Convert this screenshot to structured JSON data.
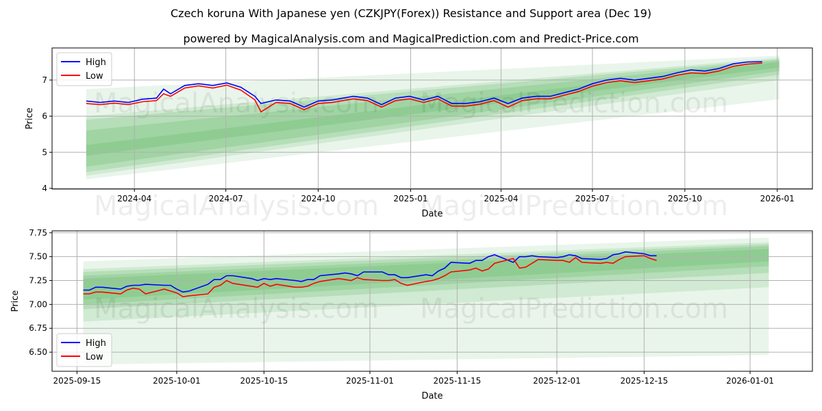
{
  "title": "Czech koruna With Japanese yen (CZKJPY(Forex)) Resistance and Support area (Dec 19)",
  "subtitle": "powered by MagicalAnalysis.com and MagicalPrediction.com and Predict-Price.com",
  "watermarks": [
    "MagicalAnalysis.com",
    "MagicalPrediction.com"
  ],
  "colors": {
    "high": "#0000ff",
    "low": "#ff0000",
    "band": "#4caf50"
  },
  "chart_data": [
    {
      "type": "line",
      "xlabel": "Date",
      "ylabel": "Price",
      "ylim": [
        3.98,
        7.89
      ],
      "xlim": [
        "2024-01-10",
        "2026-02-05"
      ],
      "yticks": [
        4,
        5,
        6,
        7
      ],
      "xticks": [
        "2024-04-01",
        "2024-07-01",
        "2024-10-01",
        "2025-01-01",
        "2025-04-01",
        "2025-07-01",
        "2025-10-01",
        "2026-01-01"
      ],
      "xtick_labels": [
        "2024-04",
        "2024-07",
        "2024-10",
        "2025-01",
        "2025-04",
        "2025-07",
        "2025-10",
        "2026-01"
      ],
      "legend": {
        "position": "top-left",
        "entries": [
          "High",
          "Low"
        ]
      },
      "grid": true,
      "bands": {
        "start": "2024-02-13",
        "end": "2026-01-03",
        "items": [
          {
            "start": [
              4.25,
              6.75
            ],
            "end": [
              6.47,
              7.68
            ],
            "alpha": 0.12
          },
          {
            "start": [
              4.35,
              6.0
            ],
            "end": [
              7.0,
              7.62
            ],
            "alpha": 0.15
          },
          {
            "start": [
              4.45,
              5.9
            ],
            "end": [
              7.15,
              7.58
            ],
            "alpha": 0.2
          },
          {
            "start": [
              4.6,
              5.6
            ],
            "end": [
              7.25,
              7.55
            ],
            "alpha": 0.2
          },
          {
            "start": [
              4.9,
              5.2
            ],
            "end": [
              7.35,
              7.5
            ],
            "alpha": 0.2
          }
        ]
      },
      "x": [
        "2024-02-13",
        "2024-02-27",
        "2024-03-12",
        "2024-03-26",
        "2024-04-09",
        "2024-04-23",
        "2024-04-30",
        "2024-05-07",
        "2024-05-21",
        "2024-06-04",
        "2024-06-18",
        "2024-07-02",
        "2024-07-16",
        "2024-07-30",
        "2024-08-05",
        "2024-08-20",
        "2024-09-03",
        "2024-09-17",
        "2024-10-01",
        "2024-10-15",
        "2024-11-05",
        "2024-11-19",
        "2024-12-03",
        "2024-12-17",
        "2024-12-31",
        "2025-01-14",
        "2025-01-28",
        "2025-02-11",
        "2025-02-25",
        "2025-03-11",
        "2025-03-25",
        "2025-04-08",
        "2025-04-22",
        "2025-05-06",
        "2025-05-20",
        "2025-06-03",
        "2025-06-17",
        "2025-07-01",
        "2025-07-15",
        "2025-07-29",
        "2025-08-12",
        "2025-08-26",
        "2025-09-09",
        "2025-09-23",
        "2025-10-07",
        "2025-10-21",
        "2025-11-04",
        "2025-11-18",
        "2025-12-02",
        "2025-12-17"
      ],
      "series": [
        {
          "name": "High",
          "values": [
            6.42,
            6.38,
            6.42,
            6.38,
            6.47,
            6.5,
            6.75,
            6.62,
            6.85,
            6.9,
            6.85,
            6.92,
            6.8,
            6.55,
            6.35,
            6.45,
            6.42,
            6.25,
            6.42,
            6.45,
            6.55,
            6.5,
            6.32,
            6.5,
            6.55,
            6.45,
            6.55,
            6.35,
            6.35,
            6.4,
            6.5,
            6.35,
            6.5,
            6.55,
            6.55,
            6.65,
            6.75,
            6.9,
            7.0,
            7.05,
            7.0,
            7.05,
            7.1,
            7.2,
            7.28,
            7.25,
            7.32,
            7.45,
            7.5,
            7.51
          ]
        },
        {
          "name": "Low",
          "values": [
            6.35,
            6.32,
            6.36,
            6.32,
            6.4,
            6.43,
            6.62,
            6.55,
            6.78,
            6.84,
            6.78,
            6.86,
            6.72,
            6.45,
            6.12,
            6.38,
            6.35,
            6.18,
            6.35,
            6.38,
            6.48,
            6.43,
            6.25,
            6.43,
            6.48,
            6.38,
            6.48,
            6.28,
            6.28,
            6.33,
            6.43,
            6.25,
            6.43,
            6.48,
            6.48,
            6.58,
            6.68,
            6.83,
            6.93,
            6.98,
            6.93,
            6.98,
            7.03,
            7.13,
            7.2,
            7.18,
            7.25,
            7.38,
            7.44,
            7.47
          ]
        }
      ]
    },
    {
      "type": "line",
      "xlabel": "Date",
      "ylabel": "Price",
      "ylim": [
        6.3,
        7.77
      ],
      "xlim": [
        "2025-09-11",
        "2026-01-11"
      ],
      "yticks": [
        6.5,
        6.75,
        7.0,
        7.25,
        7.5,
        7.75
      ],
      "ytick_labels": [
        "6.50",
        "6.75",
        "7.00",
        "7.25",
        "7.50",
        "7.75"
      ],
      "xticks": [
        "2025-09-15",
        "2025-10-01",
        "2025-10-15",
        "2025-11-01",
        "2025-11-15",
        "2025-12-01",
        "2025-12-15",
        "2026-01-01"
      ],
      "xtick_labels": [
        "2025-09-15",
        "2025-10-01",
        "2025-10-15",
        "2025-11-01",
        "2025-11-15",
        "2025-12-01",
        "2025-12-15",
        "2026-01-01"
      ],
      "legend": {
        "position": "bottom-left",
        "entries": [
          "High",
          "Low"
        ]
      },
      "grid": true,
      "bands": {
        "start": "2025-09-16",
        "end": "2026-01-04",
        "items": [
          {
            "start": [
              6.37,
              7.45
            ],
            "end": [
              6.47,
              7.7
            ],
            "alpha": 0.12
          },
          {
            "start": [
              6.82,
              7.37
            ],
            "end": [
              7.18,
              7.65
            ],
            "alpha": 0.15
          },
          {
            "start": [
              6.95,
              7.34
            ],
            "end": [
              7.33,
              7.63
            ],
            "alpha": 0.2
          },
          {
            "start": [
              7.0,
              7.3
            ],
            "end": [
              7.4,
              7.61
            ],
            "alpha": 0.2
          },
          {
            "start": [
              7.05,
              7.27
            ],
            "end": [
              7.45,
              7.58
            ],
            "alpha": 0.2
          }
        ]
      },
      "x": [
        "2025-09-16",
        "2025-09-17",
        "2025-09-18",
        "2025-09-19",
        "2025-09-22",
        "2025-09-23",
        "2025-09-24",
        "2025-09-25",
        "2025-09-26",
        "2025-09-29",
        "2025-09-30",
        "2025-10-01",
        "2025-10-02",
        "2025-10-03",
        "2025-10-06",
        "2025-10-07",
        "2025-10-08",
        "2025-10-09",
        "2025-10-10",
        "2025-10-13",
        "2025-10-14",
        "2025-10-15",
        "2025-10-16",
        "2025-10-17",
        "2025-10-20",
        "2025-10-21",
        "2025-10-22",
        "2025-10-23",
        "2025-10-24",
        "2025-10-27",
        "2025-10-28",
        "2025-10-29",
        "2025-10-30",
        "2025-10-31",
        "2025-11-03",
        "2025-11-04",
        "2025-11-05",
        "2025-11-06",
        "2025-11-07",
        "2025-11-10",
        "2025-11-11",
        "2025-11-12",
        "2025-11-13",
        "2025-11-14",
        "2025-11-17",
        "2025-11-18",
        "2025-11-19",
        "2025-11-20",
        "2025-11-21",
        "2025-11-24",
        "2025-11-25",
        "2025-11-26",
        "2025-11-27",
        "2025-11-28",
        "2025-12-01",
        "2025-12-02",
        "2025-12-03",
        "2025-12-04",
        "2025-12-05",
        "2025-12-08",
        "2025-12-09",
        "2025-12-10",
        "2025-12-11",
        "2025-12-12",
        "2025-12-15",
        "2025-12-16",
        "2025-12-17"
      ],
      "series": [
        {
          "name": "High",
          "values": [
            7.15,
            7.15,
            7.18,
            7.18,
            7.16,
            7.19,
            7.2,
            7.2,
            7.21,
            7.2,
            7.2,
            7.16,
            7.13,
            7.14,
            7.21,
            7.26,
            7.26,
            7.3,
            7.3,
            7.27,
            7.25,
            7.27,
            7.26,
            7.27,
            7.25,
            7.24,
            7.26,
            7.26,
            7.3,
            7.32,
            7.33,
            7.32,
            7.3,
            7.34,
            7.34,
            7.31,
            7.31,
            7.28,
            7.28,
            7.31,
            7.3,
            7.35,
            7.38,
            7.44,
            7.43,
            7.46,
            7.46,
            7.5,
            7.52,
            7.44,
            7.5,
            7.5,
            7.51,
            7.5,
            7.49,
            7.5,
            7.52,
            7.51,
            7.48,
            7.47,
            7.48,
            7.52,
            7.53,
            7.55,
            7.53,
            7.51,
            7.51
          ]
        },
        {
          "name": "Low",
          "values": [
            7.11,
            7.11,
            7.13,
            7.13,
            7.11,
            7.15,
            7.17,
            7.16,
            7.11,
            7.16,
            7.14,
            7.12,
            7.08,
            7.09,
            7.11,
            7.18,
            7.2,
            7.25,
            7.22,
            7.19,
            7.18,
            7.22,
            7.19,
            7.21,
            7.18,
            7.18,
            7.19,
            7.22,
            7.24,
            7.27,
            7.26,
            7.25,
            7.28,
            7.26,
            7.25,
            7.25,
            7.26,
            7.22,
            7.2,
            7.24,
            7.25,
            7.27,
            7.3,
            7.34,
            7.36,
            7.38,
            7.35,
            7.37,
            7.43,
            7.48,
            7.38,
            7.39,
            7.43,
            7.47,
            7.46,
            7.46,
            7.44,
            7.49,
            7.44,
            7.43,
            7.44,
            7.43,
            7.47,
            7.5,
            7.51,
            7.48,
            7.46
          ]
        }
      ]
    }
  ]
}
